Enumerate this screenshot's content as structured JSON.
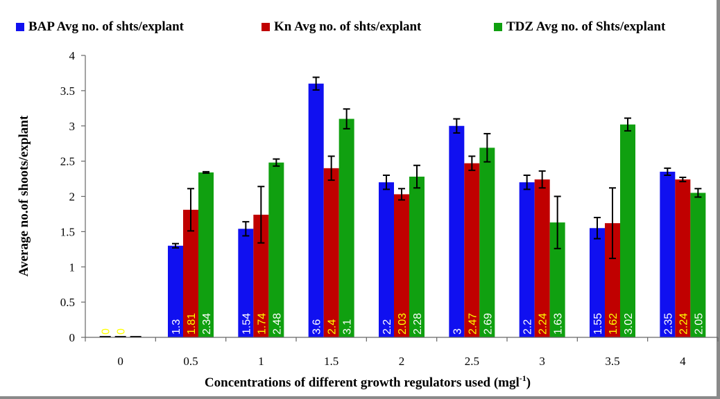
{
  "chart_data": {
    "type": "bar",
    "categories": [
      "0",
      "0.5",
      "1",
      "1.5",
      "2",
      "2.5",
      "3",
      "3.5",
      "4"
    ],
    "series": [
      {
        "name": "BAP Avg no. of shts/explant",
        "color": "#1010f0",
        "label_color": "#ffffff",
        "values": [
          0,
          1.3,
          1.54,
          3.6,
          2.2,
          3,
          2.2,
          1.55,
          2.35
        ],
        "errors": [
          0,
          0.03,
          0.1,
          0.09,
          0.1,
          0.1,
          0.1,
          0.15,
          0.05
        ],
        "labels": [
          "0",
          "1.3",
          "1.54",
          "3.6",
          "2.2",
          "3",
          "2.2",
          "1.55",
          "2.35"
        ]
      },
      {
        "name": "Kn Avg no. of shts/explant",
        "color": "#c00000",
        "label_color": "#ffff00",
        "values": [
          0,
          1.81,
          1.74,
          2.4,
          2.03,
          2.47,
          2.24,
          1.62,
          2.24
        ],
        "errors": [
          0,
          0.3,
          0.4,
          0.17,
          0.08,
          0.1,
          0.12,
          0.5,
          0.03
        ],
        "labels": [
          "0",
          "1.81",
          "1.74",
          "2.4",
          "2.03",
          "2.47",
          "2.24",
          "1.62",
          "2.24"
        ]
      },
      {
        "name": "TDZ Avg no. of Shts/explant",
        "color": "#10a010",
        "label_color": "#ffffff",
        "values": [
          0,
          2.34,
          2.48,
          3.1,
          2.28,
          2.69,
          1.63,
          3.02,
          2.05
        ],
        "errors": [
          0,
          0.01,
          0.05,
          0.14,
          0.16,
          0.2,
          0.37,
          0.09,
          0.06
        ],
        "labels": [
          "",
          "2.34",
          "2.48",
          "3.1",
          "2.28",
          "2.69",
          "1.63",
          "3.02",
          "2.05"
        ]
      }
    ],
    "title": "",
    "xlabel": "Concentrations of different growth regulators used (mgl",
    "xlabel_superscript": "-1",
    "xlabel_suffix": ")",
    "ylabel": "Average no.of shoots/explant",
    "ylim": [
      0,
      4
    ],
    "yticks": [
      "0",
      "0.5",
      "1",
      "1.5",
      "2",
      "2.5",
      "3",
      "3.5",
      "4"
    ],
    "grid": false,
    "legend_position": "top"
  }
}
